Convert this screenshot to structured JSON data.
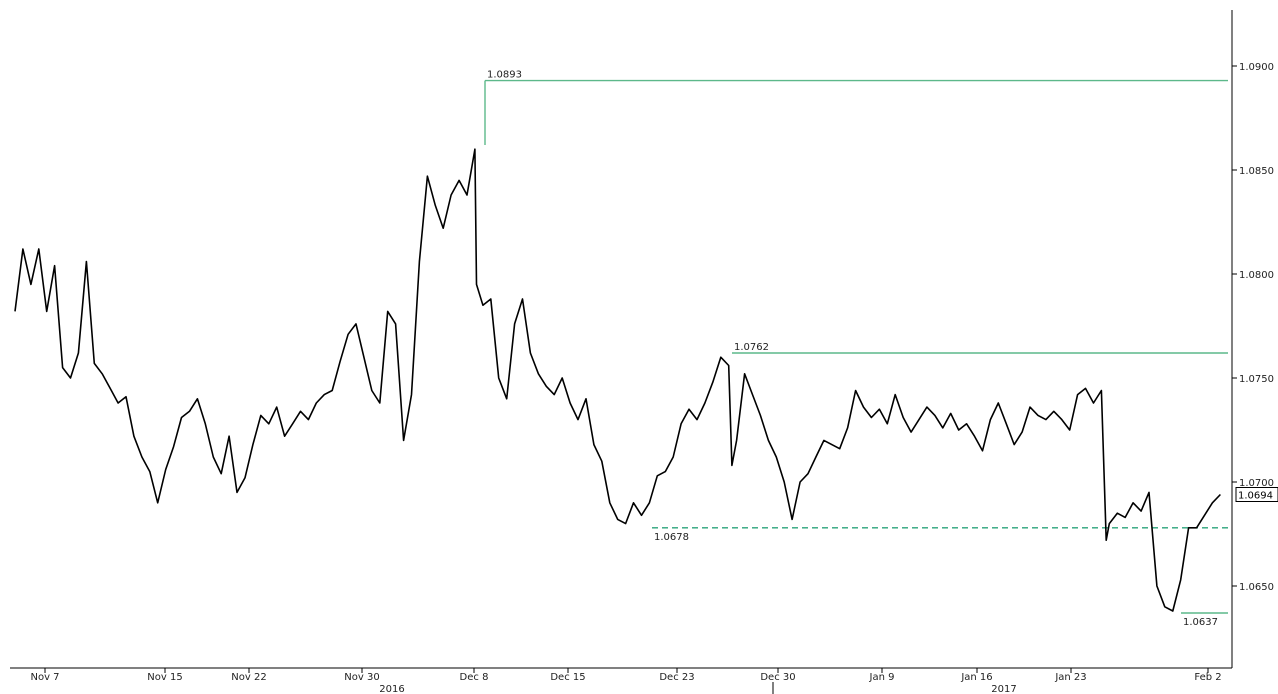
{
  "chart_data": {
    "type": "line",
    "title": "",
    "xlabel": "",
    "ylabel": "",
    "ylim": [
      1.059,
      1.0965
    ],
    "grid": false,
    "x_ticks": [
      "Nov 7",
      "Nov 15",
      "Nov 22",
      "Nov 30",
      "Dec 8",
      "Dec 15",
      "Dec 23",
      "Dec 30",
      "Jan 9",
      "Jan 16",
      "Jan 23",
      "Feb 2"
    ],
    "x_years": [
      "2016",
      "2017"
    ],
    "y_ticks": [
      "1.0900",
      "1.0850",
      "1.0800",
      "1.0750",
      "1.0700",
      "1.0650"
    ],
    "last_value": "1.0694",
    "levels": [
      {
        "label": "1.0893",
        "value": 1.0893,
        "style": "solid",
        "color": "#5cb88a"
      },
      {
        "label": "1.0762",
        "value": 1.0762,
        "style": "solid",
        "color": "#5cb88a"
      },
      {
        "label": "1.0678",
        "value": 1.0678,
        "style": "dashed",
        "color": "#2aa37a"
      },
      {
        "label": "1.0637",
        "value": 1.0637,
        "style": "solid",
        "color": "#5cb88a"
      }
    ],
    "series": [
      {
        "color": "#000000",
        "values": [
          [
            0,
            1.0782
          ],
          [
            0.5,
            1.0812
          ],
          [
            1,
            1.0795
          ],
          [
            1.5,
            1.0812
          ],
          [
            2,
            1.0782
          ],
          [
            2.5,
            1.0804
          ],
          [
            3,
            1.0755
          ],
          [
            3.5,
            1.075
          ],
          [
            4,
            1.0762
          ],
          [
            4.5,
            1.0806
          ],
          [
            5,
            1.0757
          ],
          [
            5.5,
            1.0752
          ],
          [
            6,
            1.0745
          ],
          [
            6.5,
            1.0738
          ],
          [
            7,
            1.0741
          ],
          [
            7.5,
            1.0722
          ],
          [
            8,
            1.0712
          ],
          [
            8.5,
            1.0705
          ],
          [
            9,
            1.069
          ],
          [
            9.5,
            1.0706
          ],
          [
            10,
            1.0717
          ],
          [
            10.5,
            1.0731
          ],
          [
            11,
            1.0734
          ],
          [
            11.5,
            1.074
          ],
          [
            12,
            1.0728
          ],
          [
            12.5,
            1.0712
          ],
          [
            13,
            1.0704
          ],
          [
            13.5,
            1.0722
          ],
          [
            14,
            1.0695
          ],
          [
            14.5,
            1.0702
          ],
          [
            15,
            1.0718
          ],
          [
            15.5,
            1.0732
          ],
          [
            16,
            1.0728
          ],
          [
            16.5,
            1.0736
          ],
          [
            17,
            1.0722
          ],
          [
            17.5,
            1.0728
          ],
          [
            18,
            1.0734
          ],
          [
            18.5,
            1.073
          ],
          [
            19,
            1.0738
          ],
          [
            19.5,
            1.0742
          ],
          [
            20,
            1.0744
          ],
          [
            20.5,
            1.0758
          ],
          [
            21,
            1.0771
          ],
          [
            21.5,
            1.0776
          ],
          [
            22,
            1.076
          ],
          [
            22.5,
            1.0744
          ],
          [
            23,
            1.0738
          ],
          [
            23.5,
            1.0782
          ],
          [
            24,
            1.0776
          ],
          [
            24.5,
            1.072
          ],
          [
            25,
            1.0742
          ],
          [
            25.5,
            1.0806
          ],
          [
            26,
            1.0847
          ],
          [
            26.5,
            1.0833
          ],
          [
            27,
            1.0822
          ],
          [
            27.5,
            1.0838
          ],
          [
            28,
            1.0845
          ],
          [
            28.5,
            1.0838
          ],
          [
            29,
            1.086
          ],
          [
            29.1,
            1.0795
          ],
          [
            29.5,
            1.0785
          ],
          [
            30,
            1.0788
          ],
          [
            30.5,
            1.075
          ],
          [
            31,
            1.074
          ],
          [
            31.5,
            1.0776
          ],
          [
            32,
            1.0788
          ],
          [
            32.5,
            1.0762
          ],
          [
            33,
            1.0752
          ],
          [
            33.5,
            1.0746
          ],
          [
            34,
            1.0742
          ],
          [
            34.5,
            1.075
          ],
          [
            35,
            1.0738
          ],
          [
            35.5,
            1.073
          ],
          [
            36,
            1.074
          ],
          [
            36.5,
            1.0718
          ],
          [
            37,
            1.071
          ],
          [
            37.5,
            1.069
          ],
          [
            38,
            1.0682
          ],
          [
            38.5,
            1.068
          ],
          [
            39,
            1.069
          ],
          [
            39.5,
            1.0684
          ],
          [
            40,
            1.069
          ],
          [
            40.5,
            1.0703
          ],
          [
            41,
            1.0705
          ],
          [
            41.5,
            1.0712
          ],
          [
            42,
            1.0728
          ],
          [
            42.5,
            1.0735
          ],
          [
            43,
            1.073
          ],
          [
            43.5,
            1.0738
          ],
          [
            44,
            1.0748
          ],
          [
            44.5,
            1.076
          ],
          [
            45,
            1.0756
          ],
          [
            45.2,
            1.0708
          ],
          [
            45.5,
            1.072
          ],
          [
            46,
            1.0752
          ],
          [
            46.5,
            1.0742
          ],
          [
            47,
            1.0732
          ],
          [
            47.5,
            1.072
          ],
          [
            48,
            1.0712
          ],
          [
            48.5,
            1.07
          ],
          [
            49,
            1.0682
          ],
          [
            49.5,
            1.07
          ],
          [
            50,
            1.0704
          ],
          [
            50.5,
            1.0712
          ],
          [
            51,
            1.072
          ],
          [
            51.5,
            1.0718
          ],
          [
            52,
            1.0716
          ],
          [
            52.5,
            1.0726
          ],
          [
            53,
            1.0744
          ],
          [
            53.5,
            1.0736
          ],
          [
            54,
            1.0731
          ],
          [
            54.5,
            1.0735
          ],
          [
            55,
            1.0728
          ],
          [
            55.5,
            1.0742
          ],
          [
            56,
            1.0731
          ],
          [
            56.5,
            1.0724
          ],
          [
            57,
            1.073
          ],
          [
            57.5,
            1.0736
          ],
          [
            58,
            1.0732
          ],
          [
            58.5,
            1.0726
          ],
          [
            59,
            1.0733
          ],
          [
            59.5,
            1.0725
          ],
          [
            60,
            1.0728
          ],
          [
            60.5,
            1.0722
          ],
          [
            61,
            1.0715
          ],
          [
            61.5,
            1.073
          ],
          [
            62,
            1.0738
          ],
          [
            62.5,
            1.0728
          ],
          [
            63,
            1.0718
          ],
          [
            63.5,
            1.0724
          ],
          [
            64,
            1.0736
          ],
          [
            64.5,
            1.0732
          ],
          [
            65,
            1.073
          ],
          [
            65.5,
            1.0734
          ],
          [
            66,
            1.073
          ],
          [
            66.5,
            1.0725
          ],
          [
            67,
            1.0742
          ],
          [
            67.5,
            1.0745
          ],
          [
            68,
            1.0738
          ],
          [
            68.5,
            1.0744
          ],
          [
            68.8,
            1.0672
          ],
          [
            69,
            1.068
          ],
          [
            69.5,
            1.0685
          ],
          [
            70,
            1.0683
          ],
          [
            70.5,
            1.069
          ],
          [
            71,
            1.0686
          ],
          [
            71.5,
            1.0695
          ],
          [
            72,
            1.065
          ],
          [
            72.5,
            1.064
          ],
          [
            73,
            1.0638
          ],
          [
            73.5,
            1.0653
          ],
          [
            74,
            1.0678
          ],
          [
            74.5,
            1.0678
          ],
          [
            75,
            1.0684
          ],
          [
            75.5,
            1.069
          ],
          [
            76,
            1.0694
          ]
        ]
      }
    ]
  }
}
